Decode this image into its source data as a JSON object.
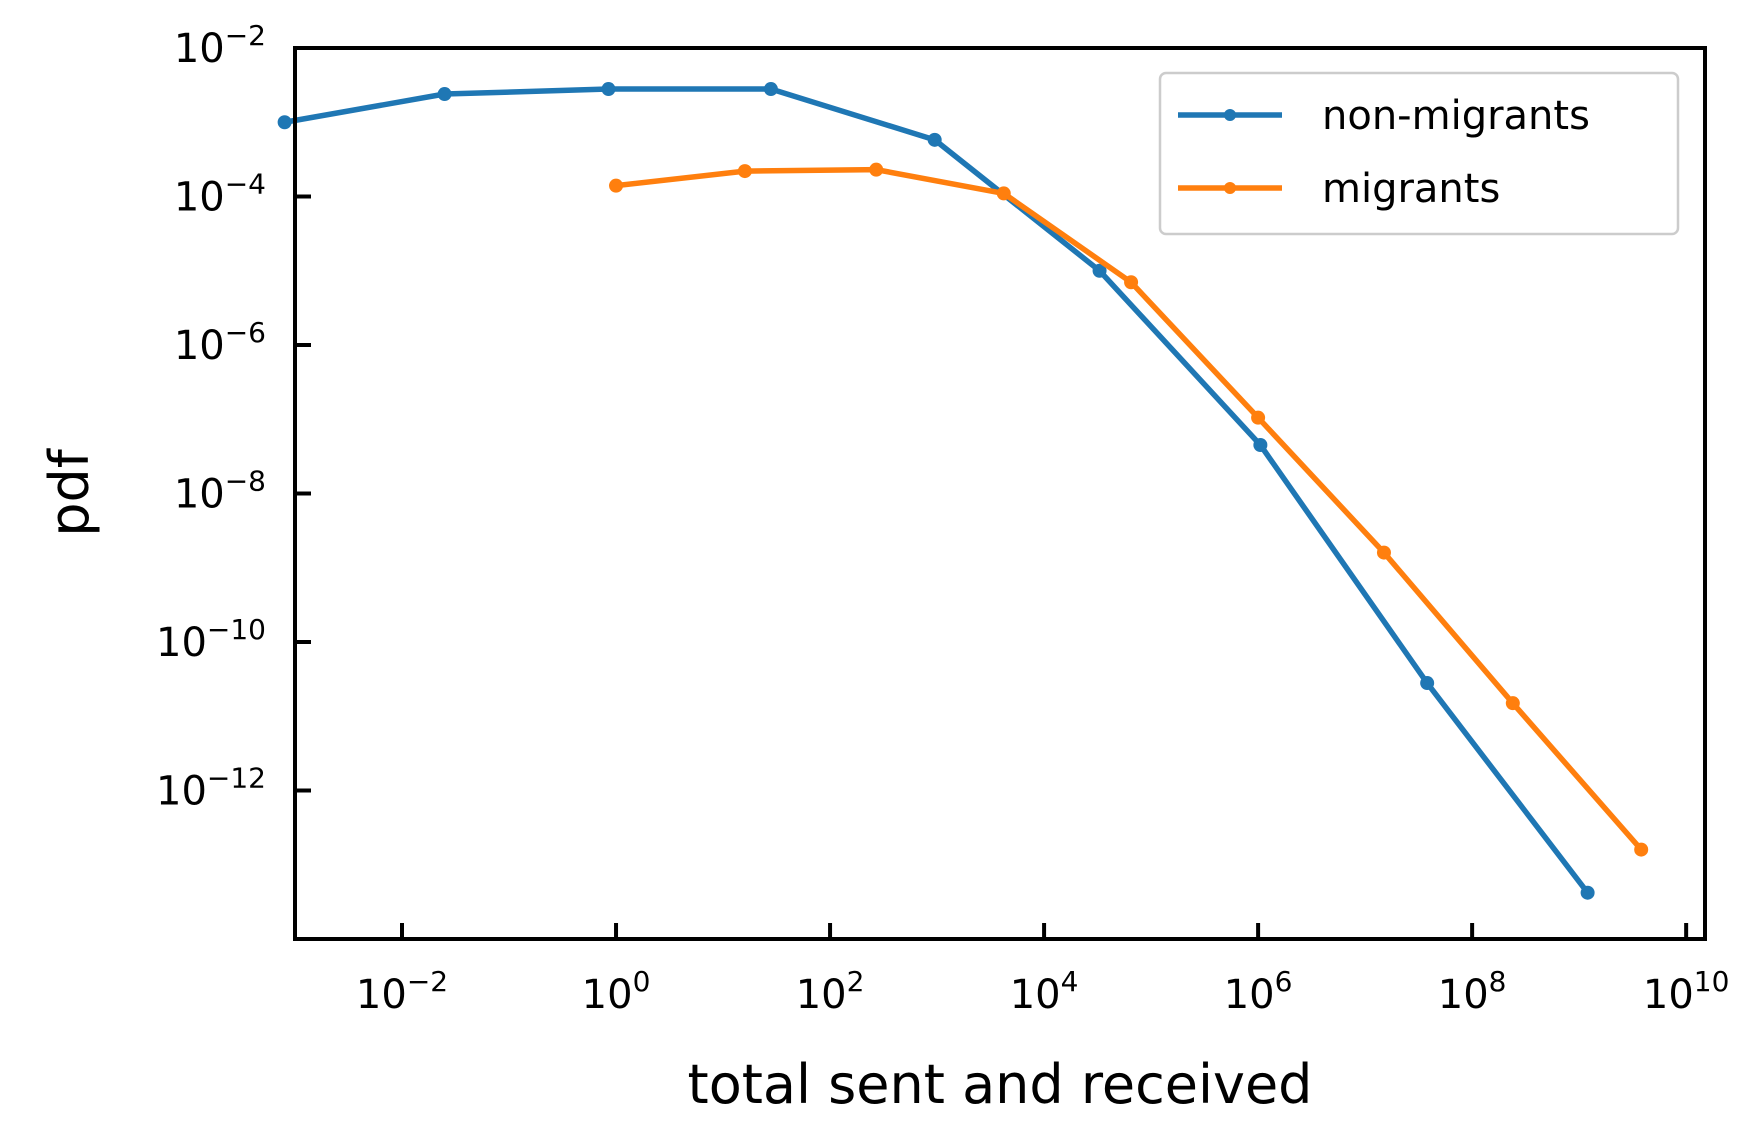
{
  "chart_data": {
    "type": "line",
    "title": "",
    "xlabel": "total sent and received",
    "ylabel": "pdf",
    "xscale": "log",
    "yscale": "log",
    "xlim": [
      0.001,
      15000000000.0
    ],
    "ylim": [
      1e-14,
      0.01
    ],
    "grid": false,
    "legend_position": "top-right",
    "x_ticks": [
      {
        "base": "10",
        "exp": "−2",
        "value": 0.01
      },
      {
        "base": "10",
        "exp": "0",
        "value": 1
      },
      {
        "base": "10",
        "exp": "2",
        "value": 100.0
      },
      {
        "base": "10",
        "exp": "4",
        "value": 10000.0
      },
      {
        "base": "10",
        "exp": "6",
        "value": 1000000.0
      },
      {
        "base": "10",
        "exp": "8",
        "value": 100000000.0
      },
      {
        "base": "10",
        "exp": "10",
        "value": 10000000000.0
      }
    ],
    "y_ticks": [
      {
        "base": "10",
        "exp": "−2",
        "value": 0.01
      },
      {
        "base": "10",
        "exp": "−4",
        "value": 0.0001
      },
      {
        "base": "10",
        "exp": "−6",
        "value": 1e-06
      },
      {
        "base": "10",
        "exp": "−8",
        "value": 1e-08
      },
      {
        "base": "10",
        "exp": "−10",
        "value": 1e-10
      },
      {
        "base": "10",
        "exp": "−12",
        "value": 1e-12
      }
    ],
    "series": [
      {
        "name": "non-migrants",
        "color": "#1f77b4",
        "x": [
          0.0008,
          0.025,
          0.85,
          28,
          950,
          33000,
          1050000.0,
          38000000.0,
          1200000000.0
        ],
        "y": [
          0.001,
          0.0024,
          0.0028,
          0.0028,
          0.00058,
          1e-05,
          4.5e-08,
          2.8e-11,
          4.2e-14
        ]
      },
      {
        "name": "migrants",
        "color": "#ff7f0e",
        "x": [
          1.0,
          16,
          270,
          4200,
          65000,
          1000000.0,
          15000000.0,
          240000000.0,
          3800000000.0
        ],
        "y": [
          0.00014,
          0.00022,
          0.00023,
          0.00011,
          7e-06,
          1.05e-07,
          1.6e-09,
          1.5e-11,
          1.6e-13
        ]
      }
    ]
  }
}
